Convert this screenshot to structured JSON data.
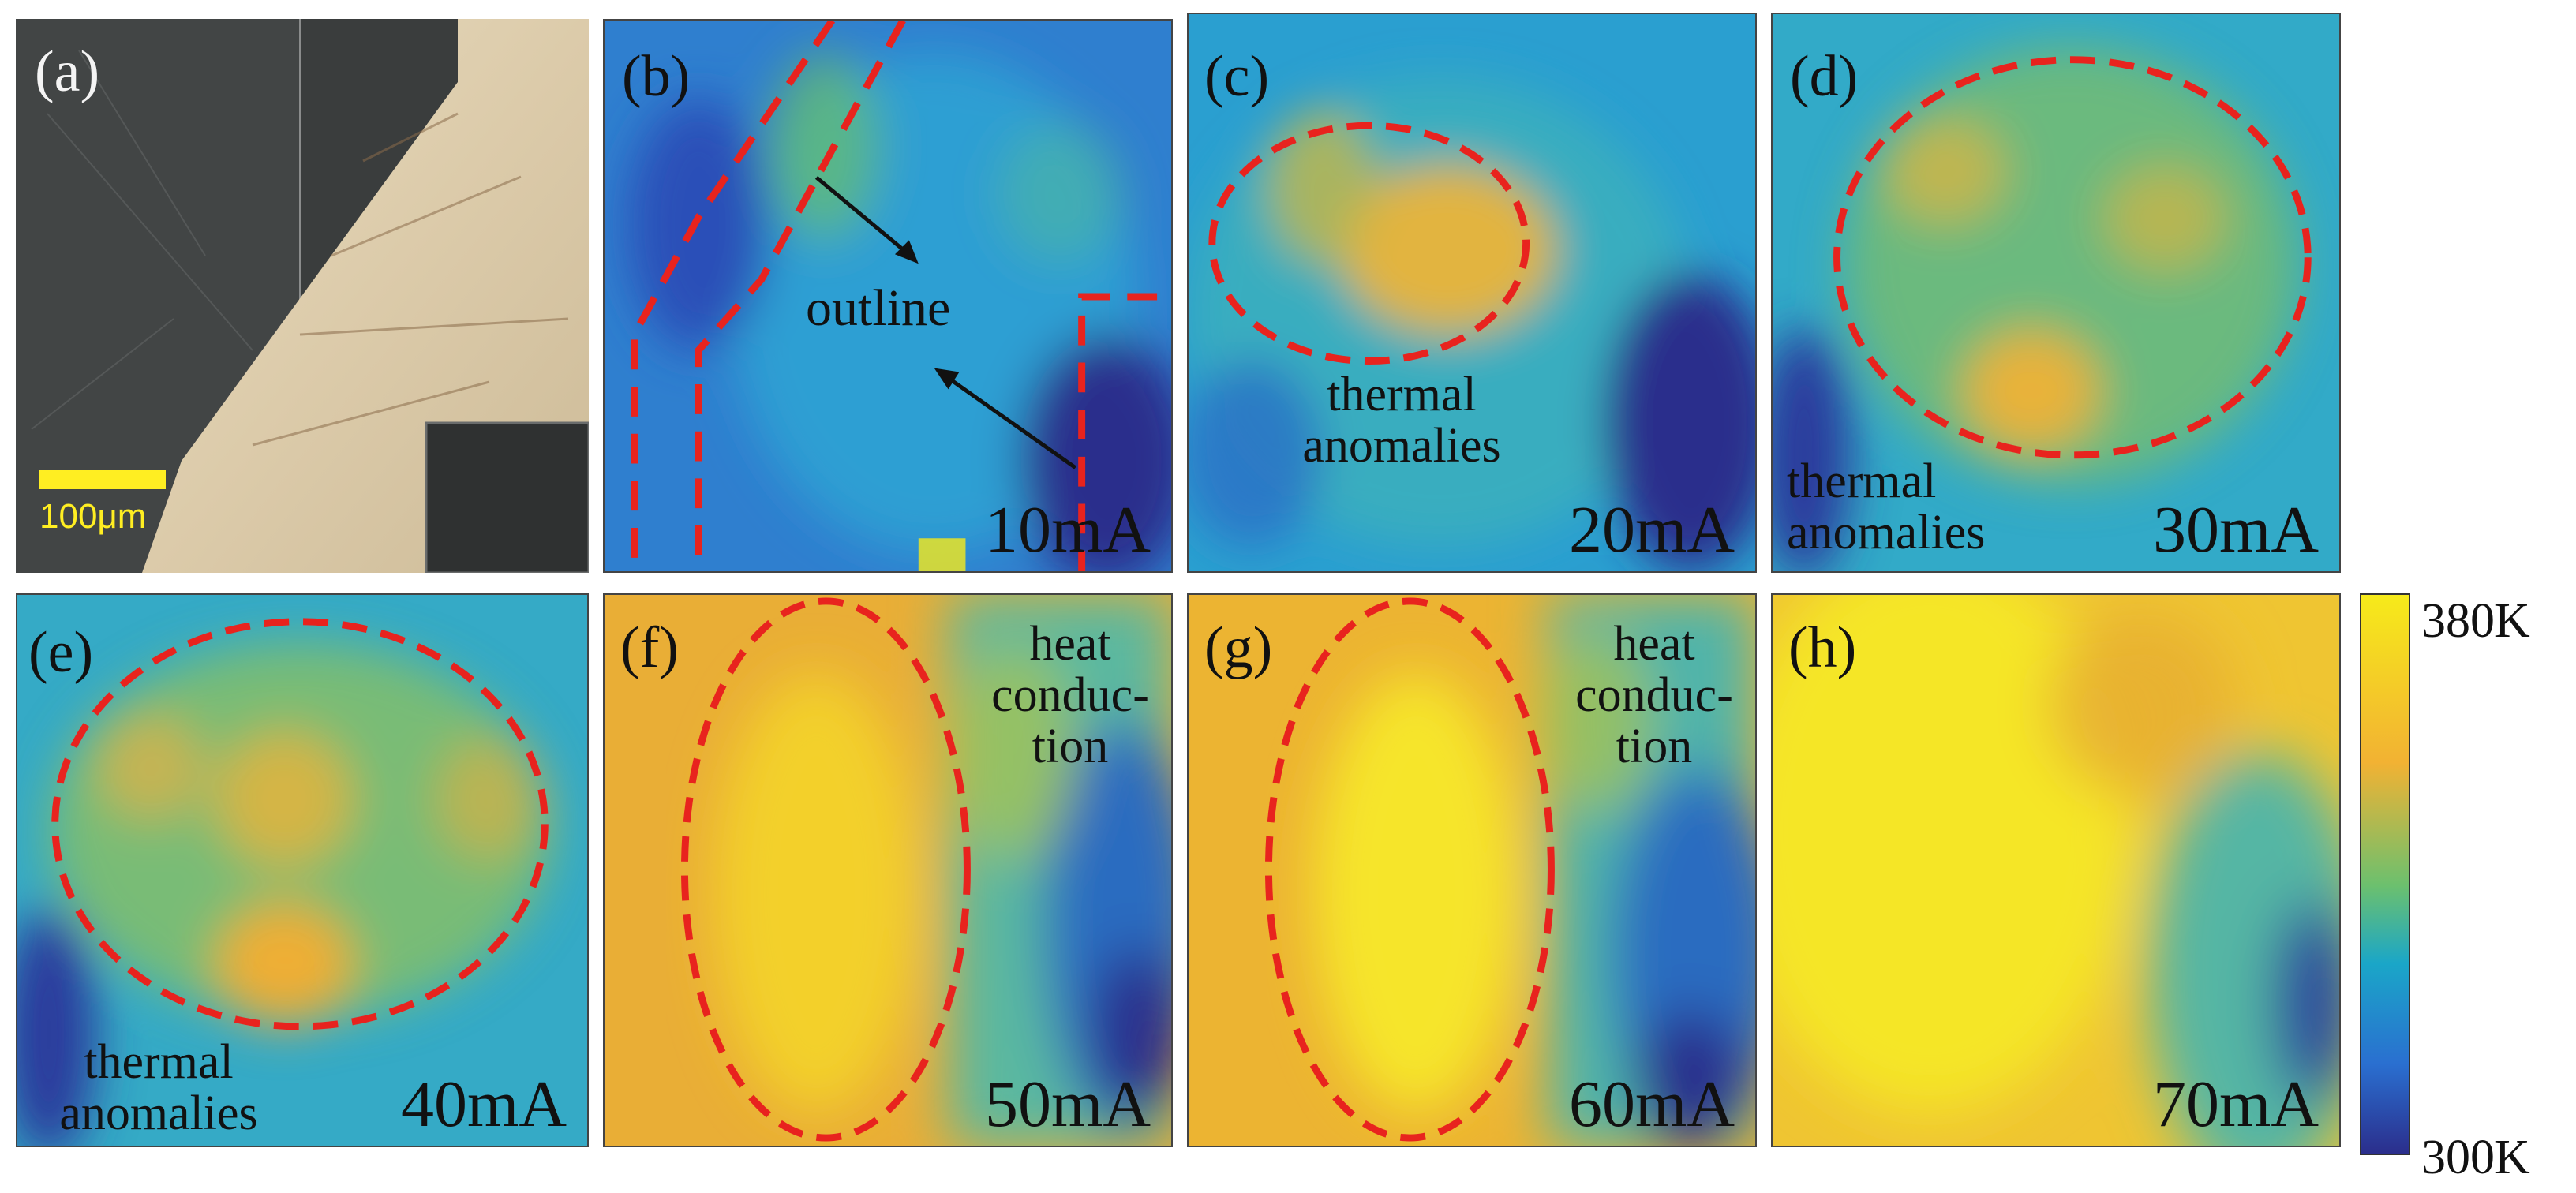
{
  "figure": {
    "panels": [
      {
        "id": "a",
        "label": "(a)",
        "scale_label": "100μm"
      },
      {
        "id": "b",
        "label": "(b)",
        "current": "10mA",
        "annotation": "outline"
      },
      {
        "id": "c",
        "label": "(c)",
        "current": "20mA",
        "annotation": "thermal anomalies"
      },
      {
        "id": "d",
        "label": "(d)",
        "current": "30mA",
        "annotation": "thermal anomalies"
      },
      {
        "id": "e",
        "label": "(e)",
        "current": "40mA",
        "annotation": "thermal anomalies"
      },
      {
        "id": "f",
        "label": "(f)",
        "current": "50mA",
        "annotation": "heat conduc- tion"
      },
      {
        "id": "g",
        "label": "(g)",
        "current": "60mA",
        "annotation": "heat conduc- tion"
      },
      {
        "id": "h",
        "label": "(h)",
        "current": "70mA"
      }
    ],
    "colorbar": {
      "max": "380K",
      "min": "300K"
    },
    "colors": {
      "dashed_outline": "#e8231e",
      "cold": "#2b2e8c",
      "mid": "#1aa6c8",
      "warm": "#f2b233",
      "hot": "#f6ea1a"
    }
  }
}
